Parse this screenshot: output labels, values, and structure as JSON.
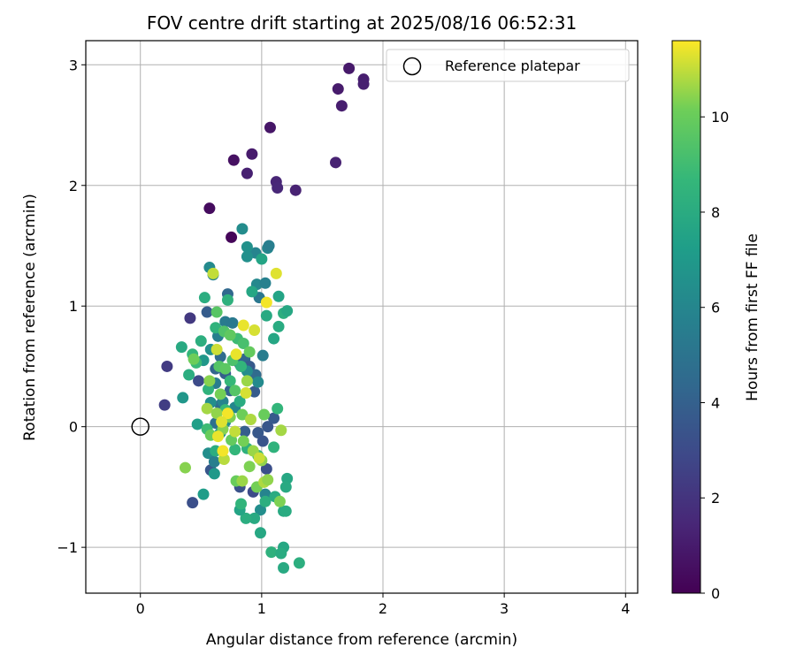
{
  "chart_data": {
    "type": "scatter",
    "title": "FOV centre drift starting at 2025/08/16 06:52:31",
    "xlabel": "Angular distance from reference (arcmin)",
    "ylabel": "Rotation from reference (arcmin)",
    "xlim": [
      -0.45,
      4.1
    ],
    "ylim": [
      -1.38,
      3.2
    ],
    "xticks": [
      0,
      1,
      2,
      3,
      4
    ],
    "xtick_labels": [
      "0",
      "1",
      "2",
      "3",
      "4"
    ],
    "yticks": [
      -1,
      0,
      1,
      2,
      3
    ],
    "ytick_labels": [
      "−1",
      "0",
      "1",
      "2",
      "3"
    ],
    "grid": true,
    "legend": {
      "placement": "top-right",
      "entries": [
        "Reference platepar"
      ]
    },
    "reference_point": {
      "x": 0,
      "y": 0,
      "label": "Reference platepar"
    },
    "colorbar": {
      "label": "Hours from first FF file",
      "colormap": "viridis",
      "range": [
        0,
        11.6
      ],
      "ticks": [
        0,
        2,
        4,
        6,
        8,
        10
      ],
      "tick_labels": [
        "0",
        "2",
        "4",
        "6",
        "8",
        "10"
      ]
    },
    "points": [
      {
        "x": 0.75,
        "y": 1.57,
        "c": 0.2
      },
      {
        "x": 0.57,
        "y": 1.81,
        "c": 0.4
      },
      {
        "x": 0.77,
        "y": 2.21,
        "c": 0.6
      },
      {
        "x": 1.07,
        "y": 2.48,
        "c": 0.8
      },
      {
        "x": 1.72,
        "y": 2.97,
        "c": 0.9
      },
      {
        "x": 1.63,
        "y": 2.8,
        "c": 1.0
      },
      {
        "x": 1.84,
        "y": 2.88,
        "c": 1.1
      },
      {
        "x": 1.84,
        "y": 2.84,
        "c": 1.2
      },
      {
        "x": 1.66,
        "y": 2.66,
        "c": 1.1
      },
      {
        "x": 0.92,
        "y": 2.26,
        "c": 1.0
      },
      {
        "x": 0.88,
        "y": 2.1,
        "c": 1.2
      },
      {
        "x": 1.61,
        "y": 2.19,
        "c": 1.3
      },
      {
        "x": 1.12,
        "y": 2.03,
        "c": 1.4
      },
      {
        "x": 1.13,
        "y": 1.98,
        "c": 1.5
      },
      {
        "x": 1.28,
        "y": 1.96,
        "c": 1.3
      },
      {
        "x": 0.41,
        "y": 0.9,
        "c": 2.2
      },
      {
        "x": 0.22,
        "y": 0.5,
        "c": 2.3
      },
      {
        "x": 0.2,
        "y": 0.18,
        "c": 2.4
      },
      {
        "x": 0.43,
        "y": -0.63,
        "c": 3.2
      },
      {
        "x": 0.48,
        "y": 0.38,
        "c": 3.0
      },
      {
        "x": 0.58,
        "y": -0.36,
        "c": 3.5
      },
      {
        "x": 0.55,
        "y": 0.95,
        "c": 3.8
      },
      {
        "x": 0.62,
        "y": 0.48,
        "c": 4.2
      },
      {
        "x": 0.66,
        "y": 0.58,
        "c": 4.5
      },
      {
        "x": 0.7,
        "y": 0.44,
        "c": 3.9
      },
      {
        "x": 0.74,
        "y": 0.3,
        "c": 4.1
      },
      {
        "x": 0.66,
        "y": 0.18,
        "c": 4.6
      },
      {
        "x": 0.62,
        "y": 0.03,
        "c": 4.8
      },
      {
        "x": 0.72,
        "y": 1.1,
        "c": 4.4
      },
      {
        "x": 0.82,
        "y": 0.52,
        "c": 4.0
      },
      {
        "x": 0.86,
        "y": 0.56,
        "c": 4.2
      },
      {
        "x": 0.9,
        "y": 0.5,
        "c": 3.7
      },
      {
        "x": 0.95,
        "y": 0.43,
        "c": 4.5
      },
      {
        "x": 0.94,
        "y": 0.29,
        "c": 3.8
      },
      {
        "x": 0.86,
        "y": -0.04,
        "c": 3.9
      },
      {
        "x": 0.97,
        "y": -0.05,
        "c": 3.6
      },
      {
        "x": 1.01,
        "y": -0.12,
        "c": 3.4
      },
      {
        "x": 1.05,
        "y": 0.0,
        "c": 3.5
      },
      {
        "x": 1.1,
        "y": 0.07,
        "c": 3.7
      },
      {
        "x": 1.04,
        "y": -0.35,
        "c": 3.2
      },
      {
        "x": 0.93,
        "y": -0.54,
        "c": 3.0
      },
      {
        "x": 0.82,
        "y": -0.5,
        "c": 3.3
      },
      {
        "x": 0.95,
        "y": 1.44,
        "c": 5.9
      },
      {
        "x": 1.05,
        "y": 1.48,
        "c": 6.0
      },
      {
        "x": 1.06,
        "y": 1.5,
        "c": 5.6
      },
      {
        "x": 0.84,
        "y": 1.64,
        "c": 6.3
      },
      {
        "x": 0.88,
        "y": 1.49,
        "c": 6.6
      },
      {
        "x": 0.57,
        "y": 1.32,
        "c": 6.2
      },
      {
        "x": 0.6,
        "y": 1.26,
        "c": 5.8
      },
      {
        "x": 0.88,
        "y": 1.41,
        "c": 6.5
      },
      {
        "x": 0.96,
        "y": 1.18,
        "c": 6.1
      },
      {
        "x": 1.03,
        "y": 1.19,
        "c": 5.7
      },
      {
        "x": 0.98,
        "y": 1.07,
        "c": 5.2
      },
      {
        "x": 0.7,
        "y": 0.87,
        "c": 5.4
      },
      {
        "x": 0.64,
        "y": 0.75,
        "c": 5.6
      },
      {
        "x": 0.76,
        "y": 0.86,
        "c": 5.3
      },
      {
        "x": 0.58,
        "y": 0.64,
        "c": 6.5
      },
      {
        "x": 0.52,
        "y": 0.55,
        "c": 6.9
      },
      {
        "x": 0.62,
        "y": 0.36,
        "c": 5.5
      },
      {
        "x": 0.58,
        "y": 0.2,
        "c": 6.4
      },
      {
        "x": 0.68,
        "y": 0.21,
        "c": 5.9
      },
      {
        "x": 0.78,
        "y": 0.16,
        "c": 6.0
      },
      {
        "x": 0.7,
        "y": 0.04,
        "c": 6.5
      },
      {
        "x": 0.66,
        "y": -0.05,
        "c": 6.8
      },
      {
        "x": 0.56,
        "y": -0.22,
        "c": 6.4
      },
      {
        "x": 0.61,
        "y": -0.29,
        "c": 5.6
      },
      {
        "x": 0.88,
        "y": 0.46,
        "c": 6.3
      },
      {
        "x": 1.01,
        "y": 0.59,
        "c": 5.5
      },
      {
        "x": 0.97,
        "y": 0.37,
        "c": 6.2
      },
      {
        "x": 0.35,
        "y": 0.24,
        "c": 6.9
      },
      {
        "x": 1.03,
        "y": -0.56,
        "c": 5.9
      },
      {
        "x": 0.99,
        "y": -0.69,
        "c": 6.4
      },
      {
        "x": 0.61,
        "y": -0.39,
        "c": 7.0
      },
      {
        "x": 0.52,
        "y": -0.56,
        "c": 7.2
      },
      {
        "x": 0.47,
        "y": 0.02,
        "c": 7.3
      },
      {
        "x": 1.0,
        "y": 1.39,
        "c": 7.6
      },
      {
        "x": 0.92,
        "y": 1.12,
        "c": 7.7
      },
      {
        "x": 1.14,
        "y": 1.08,
        "c": 7.6
      },
      {
        "x": 1.04,
        "y": 0.92,
        "c": 7.9
      },
      {
        "x": 1.18,
        "y": 0.94,
        "c": 8.2
      },
      {
        "x": 1.21,
        "y": 0.96,
        "c": 7.8
      },
      {
        "x": 1.14,
        "y": 0.83,
        "c": 8.0
      },
      {
        "x": 1.1,
        "y": 0.73,
        "c": 7.7
      },
      {
        "x": 0.53,
        "y": 1.07,
        "c": 8.1
      },
      {
        "x": 0.72,
        "y": 1.05,
        "c": 8.3
      },
      {
        "x": 0.34,
        "y": 0.66,
        "c": 7.9
      },
      {
        "x": 0.43,
        "y": 0.6,
        "c": 8.6
      },
      {
        "x": 0.5,
        "y": 0.71,
        "c": 8.2
      },
      {
        "x": 0.4,
        "y": 0.43,
        "c": 8.1
      },
      {
        "x": 0.46,
        "y": 0.53,
        "c": 8.8
      },
      {
        "x": 0.62,
        "y": 0.82,
        "c": 8.4
      },
      {
        "x": 0.8,
        "y": 0.73,
        "c": 8.9
      },
      {
        "x": 0.83,
        "y": 0.5,
        "c": 8.5
      },
      {
        "x": 0.74,
        "y": 0.38,
        "c": 8.7
      },
      {
        "x": 0.56,
        "y": 0.31,
        "c": 8.4
      },
      {
        "x": 0.7,
        "y": 0.14,
        "c": 8.8
      },
      {
        "x": 0.82,
        "y": 0.21,
        "c": 8.0
      },
      {
        "x": 0.55,
        "y": -0.02,
        "c": 8.9
      },
      {
        "x": 0.62,
        "y": -0.2,
        "c": 8.1
      },
      {
        "x": 0.78,
        "y": -0.19,
        "c": 8.6
      },
      {
        "x": 0.88,
        "y": -0.18,
        "c": 8.3
      },
      {
        "x": 0.97,
        "y": -0.24,
        "c": 8.7
      },
      {
        "x": 1.1,
        "y": -0.17,
        "c": 8.4
      },
      {
        "x": 1.13,
        "y": 0.15,
        "c": 8.6
      },
      {
        "x": 1.21,
        "y": -0.43,
        "c": 7.8
      },
      {
        "x": 1.2,
        "y": -0.5,
        "c": 7.9
      },
      {
        "x": 1.11,
        "y": -0.58,
        "c": 8.0
      },
      {
        "x": 1.03,
        "y": -0.62,
        "c": 8.2
      },
      {
        "x": 0.94,
        "y": -0.76,
        "c": 7.9
      },
      {
        "x": 0.87,
        "y": -0.76,
        "c": 8.1
      },
      {
        "x": 0.82,
        "y": -0.69,
        "c": 7.6
      },
      {
        "x": 0.83,
        "y": -0.64,
        "c": 8.5
      },
      {
        "x": 1.18,
        "y": -0.7,
        "c": 7.9
      },
      {
        "x": 1.2,
        "y": -0.7,
        "c": 8.0
      },
      {
        "x": 0.99,
        "y": -0.88,
        "c": 7.8
      },
      {
        "x": 1.08,
        "y": -1.04,
        "c": 8.3
      },
      {
        "x": 1.18,
        "y": -1.0,
        "c": 7.8
      },
      {
        "x": 1.16,
        "y": -1.05,
        "c": 8.0
      },
      {
        "x": 1.18,
        "y": -1.17,
        "c": 7.9
      },
      {
        "x": 1.31,
        "y": -1.13,
        "c": 8.2
      },
      {
        "x": 0.63,
        "y": 0.95,
        "c": 9.6
      },
      {
        "x": 0.69,
        "y": 0.79,
        "c": 9.4
      },
      {
        "x": 0.74,
        "y": 0.76,
        "c": 9.8
      },
      {
        "x": 0.85,
        "y": 0.69,
        "c": 9.2
      },
      {
        "x": 0.9,
        "y": 0.62,
        "c": 9.9
      },
      {
        "x": 0.44,
        "y": 0.56,
        "c": 10.1
      },
      {
        "x": 0.65,
        "y": 0.5,
        "c": 9.5
      },
      {
        "x": 0.76,
        "y": 0.55,
        "c": 9.3
      },
      {
        "x": 0.7,
        "y": 0.48,
        "c": 9.7
      },
      {
        "x": 0.57,
        "y": 0.38,
        "c": 10.4
      },
      {
        "x": 0.88,
        "y": 0.38,
        "c": 10.6
      },
      {
        "x": 0.66,
        "y": 0.27,
        "c": 10.2
      },
      {
        "x": 0.78,
        "y": 0.3,
        "c": 9.5
      },
      {
        "x": 0.55,
        "y": 0.15,
        "c": 10.7
      },
      {
        "x": 0.63,
        "y": 0.11,
        "c": 10.5
      },
      {
        "x": 0.74,
        "y": 0.08,
        "c": 10.3
      },
      {
        "x": 0.84,
        "y": 0.1,
        "c": 10.1
      },
      {
        "x": 0.91,
        "y": 0.06,
        "c": 10.8
      },
      {
        "x": 0.68,
        "y": -0.02,
        "c": 10.4
      },
      {
        "x": 0.58,
        "y": -0.07,
        "c": 10.0
      },
      {
        "x": 0.75,
        "y": -0.11,
        "c": 9.9
      },
      {
        "x": 0.85,
        "y": -0.12,
        "c": 10.2
      },
      {
        "x": 0.93,
        "y": -0.2,
        "c": 10.6
      },
      {
        "x": 1.0,
        "y": -0.28,
        "c": 10.5
      },
      {
        "x": 0.69,
        "y": -0.27,
        "c": 10.9
      },
      {
        "x": 0.9,
        "y": -0.33,
        "c": 10.3
      },
      {
        "x": 0.37,
        "y": -0.34,
        "c": 10.4
      },
      {
        "x": 0.79,
        "y": -0.45,
        "c": 10.0
      },
      {
        "x": 0.84,
        "y": -0.45,
        "c": 10.6
      },
      {
        "x": 0.96,
        "y": -0.5,
        "c": 10.2
      },
      {
        "x": 1.02,
        "y": -0.46,
        "c": 10.8
      },
      {
        "x": 1.05,
        "y": -0.44,
        "c": 10.5
      },
      {
        "x": 1.15,
        "y": -0.62,
        "c": 10.3
      },
      {
        "x": 1.16,
        "y": -0.03,
        "c": 10.7
      },
      {
        "x": 1.02,
        "y": 0.1,
        "c": 10.0
      },
      {
        "x": 0.94,
        "y": 0.8,
        "c": 11.2
      },
      {
        "x": 0.85,
        "y": 0.84,
        "c": 11.4
      },
      {
        "x": 1.04,
        "y": 1.03,
        "c": 11.5
      },
      {
        "x": 1.12,
        "y": 1.27,
        "c": 11.3
      },
      {
        "x": 0.6,
        "y": 1.27,
        "c": 11.0
      },
      {
        "x": 0.63,
        "y": 0.64,
        "c": 11.1
      },
      {
        "x": 0.79,
        "y": 0.6,
        "c": 11.4
      },
      {
        "x": 0.87,
        "y": 0.28,
        "c": 11.2
      },
      {
        "x": 0.72,
        "y": 0.11,
        "c": 11.5
      },
      {
        "x": 0.67,
        "y": 0.04,
        "c": 11.3
      },
      {
        "x": 0.78,
        "y": -0.04,
        "c": 11.0
      },
      {
        "x": 0.64,
        "y": -0.08,
        "c": 11.4
      },
      {
        "x": 0.98,
        "y": -0.26,
        "c": 11.1
      },
      {
        "x": 0.68,
        "y": -0.2,
        "c": 11.5
      }
    ]
  }
}
